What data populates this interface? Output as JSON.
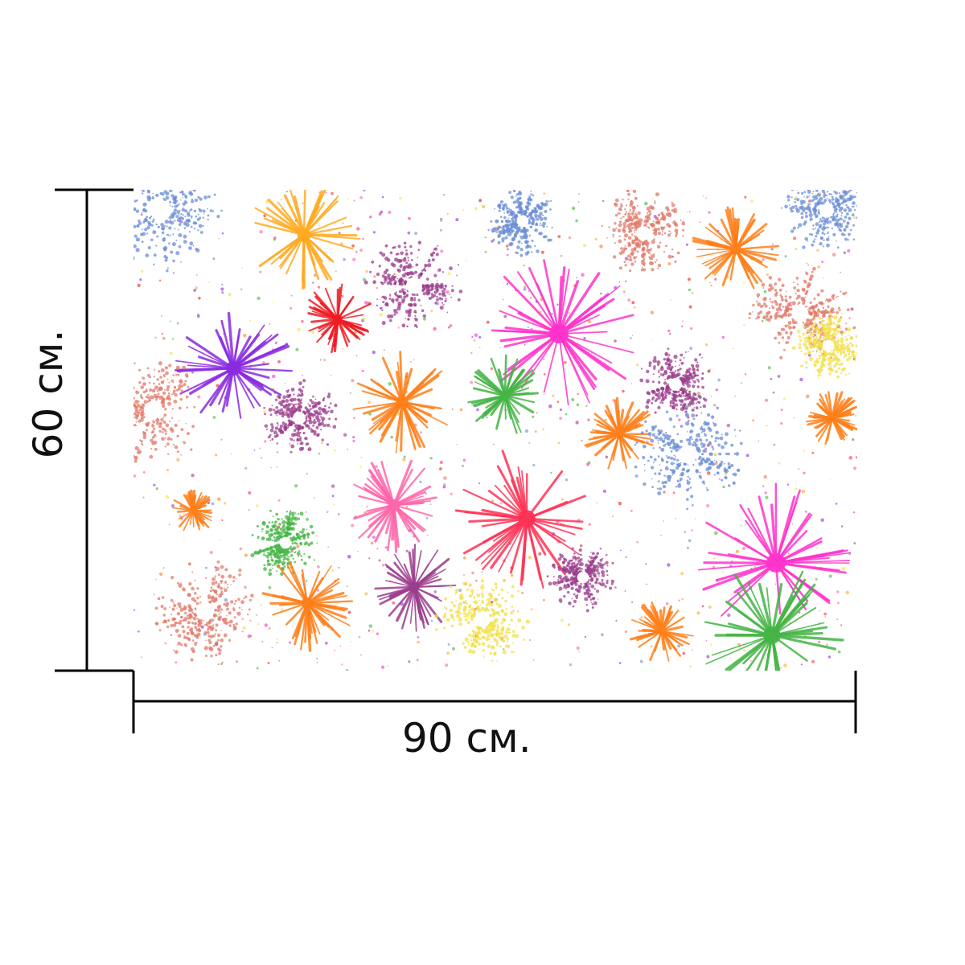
{
  "product": {
    "width_label": "90 см.",
    "height_label": "60 см."
  },
  "artwork": {
    "subject": "fireworks-pattern",
    "background": "#ffffff",
    "colors": [
      "#ff33cc",
      "#ff3355",
      "#8a2be2",
      "#ff7f1a",
      "#ffaa22",
      "#6b8ed6",
      "#44b444",
      "#9b3d8c",
      "#ee1c24",
      "#ff66aa",
      "#f1e04a",
      "#e27a6a"
    ]
  },
  "dimension_lines": {
    "color": "#000000"
  }
}
